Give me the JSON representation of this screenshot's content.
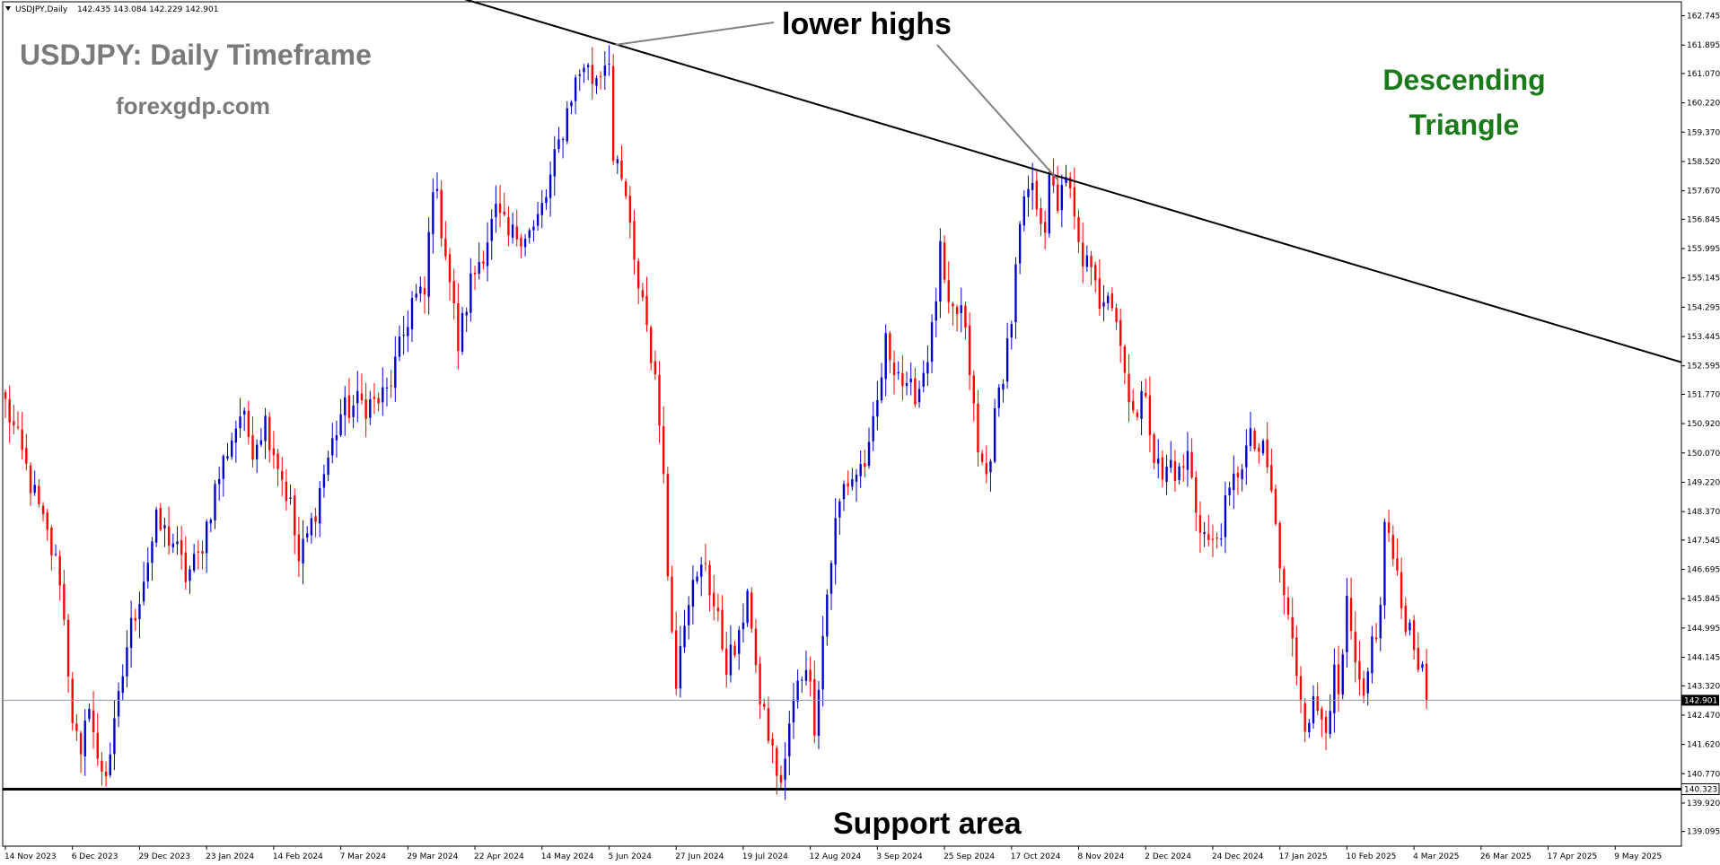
{
  "header": {
    "symbol": "USDJPY,Daily",
    "ohlc": "142.435 143.084 142.229 142.901",
    "menu_icon": "triangle-down-icon"
  },
  "labels": {
    "title": "USDJPY: Daily Timeframe",
    "site": "forexgdp.com",
    "lower_highs": "lower highs",
    "pattern_line1": "Descending",
    "pattern_line2": "Triangle",
    "support": "Support area"
  },
  "colors": {
    "bull": "#0000cd",
    "bear": "#ff0000",
    "pattern_text": "#1a7a1a",
    "title_text": "#7a7a7a"
  },
  "chart_data": {
    "type": "candlestick",
    "title": "USDJPY: Daily Timeframe",
    "ylim": [
      138.67,
      163.15
    ],
    "y_ticks": [
      "162.745",
      "161.895",
      "161.070",
      "160.220",
      "159.370",
      "158.520",
      "157.670",
      "156.845",
      "155.995",
      "155.145",
      "154.295",
      "153.445",
      "152.595",
      "151.770",
      "150.920",
      "150.070",
      "149.220",
      "148.370",
      "147.545",
      "146.695",
      "145.845",
      "144.995",
      "144.145",
      "143.320",
      "142.470",
      "141.620",
      "140.770",
      "139.920",
      "139.095"
    ],
    "x_ticks": [
      "14 Nov 2023",
      "6 Dec 2023",
      "29 Dec 2023",
      "23 Jan 2024",
      "14 Feb 2024",
      "7 Mar 2024",
      "29 Mar 2024",
      "22 Apr 2024",
      "14 May 2024",
      "5 Jun 2024",
      "27 Jun 2024",
      "19 Jul 2024",
      "12 Aug 2024",
      "3 Sep 2024",
      "25 Sep 2024",
      "17 Oct 2024",
      "8 Nov 2024",
      "2 Dec 2024",
      "24 Dec 2024",
      "17 Jan 2025",
      "10 Feb 2025",
      "4 Mar 2025",
      "26 Mar 2025",
      "17 Apr 2025",
      "9 May 2025"
    ],
    "current_price": 142.901,
    "support_level": 140.323,
    "trendline": {
      "start_price": 163.3,
      "end_price": 152.7
    },
    "path": [
      [
        0,
        151.5
      ],
      [
        4,
        150.0
      ],
      [
        9,
        148.0
      ],
      [
        13,
        146.5
      ],
      [
        16,
        142.5
      ],
      [
        18,
        141.0
      ],
      [
        20,
        143.0
      ],
      [
        22,
        141.0
      ],
      [
        24,
        140.9
      ],
      [
        26,
        142.0
      ],
      [
        29,
        144.5
      ],
      [
        33,
        146.5
      ],
      [
        36,
        148.0
      ],
      [
        40,
        147.5
      ],
      [
        43,
        146.5
      ],
      [
        46,
        147.0
      ],
      [
        50,
        149.0
      ],
      [
        53,
        150.2
      ],
      [
        56,
        151.2
      ],
      [
        59,
        150.3
      ],
      [
        62,
        151.0
      ],
      [
        65,
        149.8
      ],
      [
        68,
        148.5
      ],
      [
        70,
        146.9
      ],
      [
        73,
        148.0
      ],
      [
        76,
        149.5
      ],
      [
        80,
        151.2
      ],
      [
        84,
        151.5
      ],
      [
        88,
        151.5
      ],
      [
        91,
        151.8
      ],
      [
        94,
        153.0
      ],
      [
        97,
        154.5
      ],
      [
        100,
        154.6
      ],
      [
        102,
        158.0
      ],
      [
        105,
        156.0
      ],
      [
        108,
        153.2
      ],
      [
        111,
        155.0
      ],
      [
        114,
        156.0
      ],
      [
        117,
        157.0
      ],
      [
        120,
        156.3
      ],
      [
        123,
        156.5
      ],
      [
        126,
        156.5
      ],
      [
        129,
        157.5
      ],
      [
        132,
        159.0
      ],
      [
        135,
        160.5
      ],
      [
        138,
        161.4
      ],
      [
        140,
        160.9
      ],
      [
        142,
        161.2
      ],
      [
        144,
        161.7
      ],
      [
        145,
        158.5
      ],
      [
        148,
        157.5
      ],
      [
        150,
        155.4
      ],
      [
        152,
        154.6
      ],
      [
        154,
        153.0
      ],
      [
        156,
        151.0
      ],
      [
        157,
        149.9
      ],
      [
        158,
        146.4
      ],
      [
        160,
        143.6
      ],
      [
        161,
        144.8
      ],
      [
        163,
        146.0
      ],
      [
        165,
        146.3
      ],
      [
        167,
        147.0
      ],
      [
        168,
        146.2
      ],
      [
        170,
        145.1
      ],
      [
        172,
        144.0
      ],
      [
        175,
        144.5
      ],
      [
        177,
        146.3
      ],
      [
        179,
        143.5
      ],
      [
        181,
        142.5
      ],
      [
        183,
        141.3
      ],
      [
        185,
        140.5
      ],
      [
        186,
        141.0
      ],
      [
        187,
        142.2
      ],
      [
        189,
        143.3
      ],
      [
        191,
        144.1
      ],
      [
        193,
        142.3
      ],
      [
        196,
        146.0
      ],
      [
        198,
        148.0
      ],
      [
        200,
        149.1
      ],
      [
        203,
        149.5
      ],
      [
        206,
        150.0
      ],
      [
        208,
        151.5
      ],
      [
        210,
        153.2
      ],
      [
        213,
        152.5
      ],
      [
        215,
        151.7
      ],
      [
        218,
        152.0
      ],
      [
        221,
        153.5
      ],
      [
        223,
        155.8
      ],
      [
        225,
        154.0
      ],
      [
        228,
        154.2
      ],
      [
        230,
        152.5
      ],
      [
        232,
        150.0
      ],
      [
        234,
        149.4
      ],
      [
        236,
        151.0
      ],
      [
        238,
        152.5
      ],
      [
        240,
        154.0
      ],
      [
        242,
        156.5
      ],
      [
        244,
        157.7
      ],
      [
        246,
        157.4
      ],
      [
        248,
        156.7
      ],
      [
        249,
        157.8
      ],
      [
        251,
        157.3
      ],
      [
        252,
        158.0
      ],
      [
        254,
        157.5
      ],
      [
        256,
        156.0
      ],
      [
        258,
        155.5
      ],
      [
        261,
        154.5
      ],
      [
        263,
        155.0
      ],
      [
        265,
        154.0
      ],
      [
        267,
        152.4
      ],
      [
        270,
        151.0
      ],
      [
        272,
        152.0
      ],
      [
        274,
        150.0
      ],
      [
        276,
        149.3
      ],
      [
        278,
        149.8
      ],
      [
        280,
        149.4
      ],
      [
        282,
        150.0
      ],
      [
        284,
        148.5
      ],
      [
        286,
        147.7
      ],
      [
        288,
        147.3
      ],
      [
        290,
        148.0
      ],
      [
        292,
        148.8
      ],
      [
        294,
        149.6
      ],
      [
        297,
        150.4
      ],
      [
        300,
        150.0
      ],
      [
        302,
        149.0
      ],
      [
        304,
        146.7
      ],
      [
        306,
        145.2
      ],
      [
        308,
        143.8
      ],
      [
        310,
        142.4
      ],
      [
        312,
        142.7
      ],
      [
        315,
        142.4
      ],
      [
        317,
        143.5
      ],
      [
        318,
        142.8
      ],
      [
        320,
        145.5
      ],
      [
        322,
        143.8
      ],
      [
        324,
        142.6
      ],
      [
        326,
        144.6
      ],
      [
        328,
        145.4
      ],
      [
        329,
        148.2
      ],
      [
        331,
        147.0
      ],
      [
        333,
        145.6
      ],
      [
        335,
        145.0
      ],
      [
        336,
        144.7
      ],
      [
        338,
        143.5
      ],
      [
        339,
        142.9
      ]
    ]
  }
}
